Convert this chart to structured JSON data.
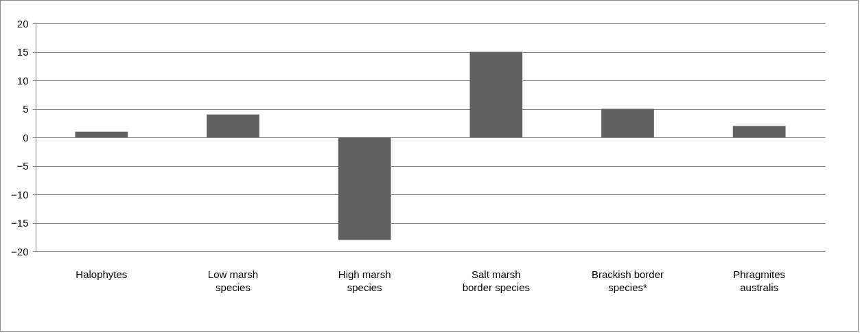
{
  "chart_data": {
    "type": "bar",
    "categories": [
      "Halophytes",
      "Low marsh species",
      "High marsh species",
      "Salt marsh border species",
      "Brackish border species*",
      "Phragmites australis"
    ],
    "values": [
      1,
      4,
      -18,
      15,
      5,
      2
    ],
    "color": "#616161",
    "ylim": [
      -20,
      20
    ],
    "yticks": [
      -20,
      -15,
      -10,
      -5,
      0,
      5,
      10,
      15,
      20
    ],
    "grid": "y"
  }
}
